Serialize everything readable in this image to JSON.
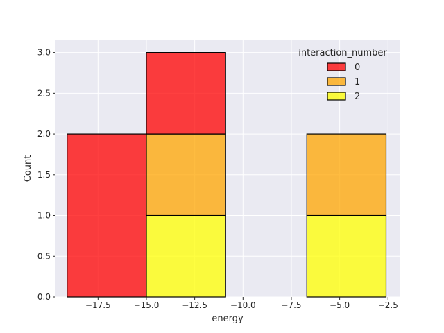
{
  "chart_data": {
    "type": "bar",
    "subtype": "stacked-histogram",
    "title": "",
    "xlabel": "energy",
    "ylabel": "Count",
    "xlim": [
      -19.7,
      -1.9
    ],
    "ylim": [
      0,
      3.15
    ],
    "xticks": [
      -17.5,
      -15.0,
      -12.5,
      -10.0,
      -7.5,
      -5.0,
      -2.5
    ],
    "xtick_labels": [
      "−17.5",
      "−15.0",
      "−12.5",
      "−10.0",
      "−7.5",
      "−5.0",
      "−2.5"
    ],
    "yticks": [
      0.0,
      0.5,
      1.0,
      1.5,
      2.0,
      2.5,
      3.0
    ],
    "ytick_labels": [
      "0.0",
      "0.5",
      "1.0",
      "1.5",
      "2.0",
      "2.5",
      "3.0"
    ],
    "bin_edges": [
      -19.1,
      -15.0,
      -10.9,
      -6.7,
      -2.6
    ],
    "grid": true,
    "legend": {
      "title": "interaction_number",
      "position": "top-right"
    },
    "series": [
      {
        "name": "0",
        "color": "#ff0000",
        "values": [
          2,
          1,
          0,
          0
        ]
      },
      {
        "name": "1",
        "color": "#ffa500",
        "values": [
          0,
          1,
          0,
          1
        ]
      },
      {
        "name": "2",
        "color": "#ffff00",
        "values": [
          0,
          1,
          0,
          1
        ]
      }
    ],
    "stack_order": [
      "2",
      "1",
      "0"
    ],
    "style": {
      "background": "#eaeaf2",
      "grid_color": "#ffffff",
      "edge_color": "#000000",
      "bar_opacity": 0.75
    }
  }
}
